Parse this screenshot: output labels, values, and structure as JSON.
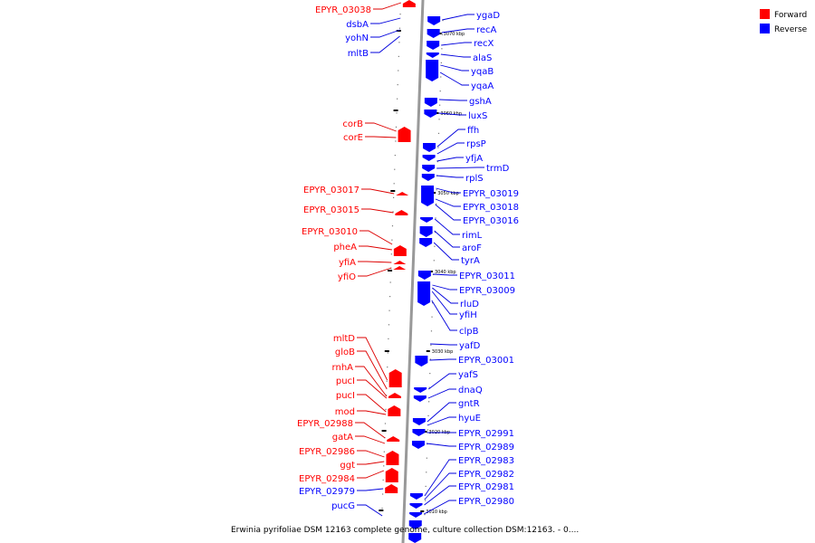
{
  "colors": {
    "forward": "#ff0000",
    "reverse": "#0000ff",
    "leader_forward": "#dd0000",
    "leader_reverse": "#0000dd",
    "backbone": "#999999"
  },
  "legend": [
    {
      "label": "Forward",
      "color": "#ff0000"
    },
    {
      "label": "Reverse",
      "color": "#0000ff"
    }
  ],
  "caption": "Erwinia pyrifoliae DSM 12163 complete genome, culture collection DSM:12163. - 0....",
  "scale_ticks": [
    "3070 kbp",
    "3060 kbp",
    "3050 kbp",
    "3040 kbp",
    "3030 kbp",
    "3020 kbp",
    "3010 kbp"
  ],
  "forward_genes": [
    "EPYR_03038",
    "dsbA",
    "yohN",
    "mltB",
    "corB",
    "corE",
    "EPYR_03017",
    "EPYR_03015",
    "EPYR_03010",
    "pheA",
    "yfiA",
    "yfiO",
    "mltD",
    "gloB",
    "rnhA",
    "pucI",
    "pucI",
    "mod",
    "EPYR_02988",
    "gatA",
    "EPYR_02986",
    "ggt",
    "EPYR_02984",
    "EPYR_02979",
    "pucG"
  ],
  "forward_colors": [
    "forward",
    "reverse",
    "reverse",
    "reverse",
    "forward",
    "forward",
    "forward",
    "forward",
    "forward",
    "forward",
    "forward",
    "forward",
    "forward",
    "forward",
    "forward",
    "forward",
    "forward",
    "forward",
    "forward",
    "forward",
    "forward",
    "forward",
    "forward",
    "reverse",
    "reverse"
  ],
  "reverse_genes": [
    "ygaD",
    "recA",
    "recX",
    "alaS",
    "yqaB",
    "yqaA",
    "gshA",
    "luxS",
    "ffh",
    "rpsP",
    "yfjA",
    "trmD",
    "rplS",
    "EPYR_03019",
    "EPYR_03018",
    "EPYR_03016",
    "rimL",
    "aroF",
    "tyrA",
    "EPYR_03011",
    "EPYR_03009",
    "rluD",
    "yfiH",
    "clpB",
    "yafD",
    "EPYR_03001",
    "yafS",
    "dnaQ",
    "gntR",
    "hyuE",
    "EPYR_02991",
    "EPYR_02989",
    "EPYR_02983",
    "EPYR_02982",
    "EPYR_02981",
    "EPYR_02980"
  ]
}
